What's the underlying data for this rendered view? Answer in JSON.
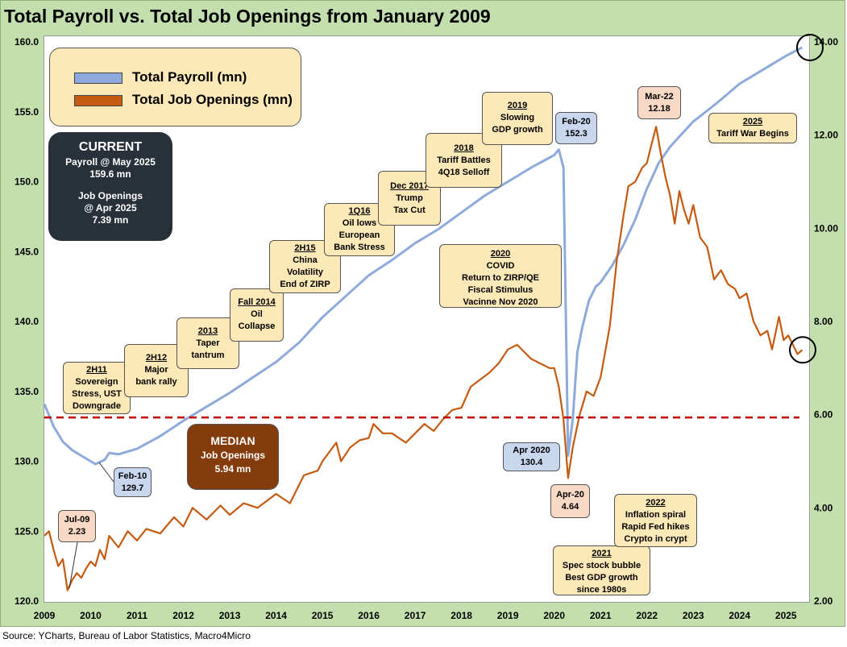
{
  "title": "Total Payroll vs. Total Job Openings from January 2009",
  "source": "Source: YCharts, Bureau of Labor Statistics, Macro4Micro",
  "colors": {
    "payroll": "#8eaadb",
    "openings": "#c55a11",
    "median_line": "#c00000",
    "frame": "#c3dfae"
  },
  "legend": {
    "payroll": "Total Payroll (mn)",
    "openings": "Total Job Openings (mn)"
  },
  "current_box": {
    "title": "CURRENT",
    "line1": "Payroll @ May 2025",
    "line2": "159.6 mn",
    "line3": "Job Openings",
    "line4": "@  Apr 2025",
    "line5": "7.39 mn"
  },
  "median_box": {
    "title": "MEDIAN",
    "line1": "Job Openings",
    "line2": "5.94 mn"
  },
  "annotations": {
    "a2h11": {
      "t": "2H11",
      "l1": "Sovereign",
      "l2": "Stress, UST",
      "l3": "Downgrade"
    },
    "a2h12": {
      "t": "2H12",
      "l1": "Major",
      "l2": "bank rally"
    },
    "a2013": {
      "t": "2013",
      "l1": "Taper",
      "l2": "tantrum"
    },
    "afall14": {
      "t": "Fall 2014",
      "l1": "Oil",
      "l2": "Collapse"
    },
    "a2h15": {
      "t": "2H15",
      "l1": "China",
      "l2": "Volatility",
      "l3": "End of ZIRP"
    },
    "a1q16": {
      "t": "1Q16",
      "l1": "Oil lows",
      "l2": "European",
      "l3": "Bank Stress"
    },
    "adec17": {
      "t": "Dec 2017",
      "l1": "Trump",
      "l2": "Tax Cut"
    },
    "a2018": {
      "t": "2018",
      "l1": "Tariff Battles",
      "l2": "4Q18 Selloff"
    },
    "a2019": {
      "t": "2019",
      "l1": "Slowing",
      "l2": "GDP growth"
    },
    "a2020": {
      "t": "2020",
      "l1": "COVID",
      "l2": "Return  to ZIRP/QE",
      "l3": "Fiscal Stimulus",
      "l4": "Vacinne Nov 2020"
    },
    "a2021": {
      "t": "2021",
      "l1": "Spec stock bubble",
      "l2": "Best GDP growth",
      "l3": "since 1980s"
    },
    "a2022": {
      "t": "2022",
      "l1": "Inflation spiral",
      "l2": "Rapid Fed hikes",
      "l3": "Crypto in crypt"
    },
    "a2025": {
      "t": "2025",
      "l1": "Tariff War Begins"
    }
  },
  "callouts": {
    "feb10": {
      "l1": "Feb-10",
      "l2": "129.7"
    },
    "jul09": {
      "l1": "Jul-09",
      "l2": "2.23"
    },
    "feb20": {
      "l1": "Feb-20",
      "l2": "152.3"
    },
    "apr2020": {
      "l1": "Apr 2020",
      "l2": "130.4"
    },
    "apr20": {
      "l1": "Apr-20",
      "l2": "4.64"
    },
    "mar22": {
      "l1": "Mar-22",
      "l2": "12.18"
    }
  },
  "chart_data": {
    "type": "line",
    "title": "Total Payroll vs. Total Job Openings from January 2009",
    "x_axis": {
      "min": 2009,
      "max": 2025.5,
      "ticks": [
        "2009",
        "2010",
        "2011",
        "2012",
        "2013",
        "2014",
        "2015",
        "2016",
        "2017",
        "2018",
        "2019",
        "2020",
        "2021",
        "2022",
        "2023",
        "2024",
        "2025"
      ]
    },
    "y_left": {
      "min": 120,
      "max": 160,
      "ticks": [
        "120.0",
        "125.0",
        "130.0",
        "135.0",
        "140.0",
        "145.0",
        "150.0",
        "155.0",
        "160.0"
      ]
    },
    "y_right": {
      "min": 2,
      "max": 14,
      "ticks": [
        "2.00",
        "4.00",
        "6.00",
        "8.00",
        "10.00",
        "12.00",
        "14.00"
      ]
    },
    "median_openings": 5.94,
    "series": [
      {
        "name": "Total Payroll (mn)",
        "axis": "left",
        "points": [
          [
            2009.0,
            134.1
          ],
          [
            2009.2,
            132.5
          ],
          [
            2009.4,
            131.4
          ],
          [
            2009.6,
            130.8
          ],
          [
            2009.8,
            130.4
          ],
          [
            2010.0,
            130.0
          ],
          [
            2010.1,
            129.8
          ],
          [
            2010.3,
            130.1
          ],
          [
            2010.4,
            130.6
          ],
          [
            2010.6,
            130.5
          ],
          [
            2010.8,
            130.7
          ],
          [
            2011.0,
            130.9
          ],
          [
            2011.5,
            131.8
          ],
          [
            2012.0,
            132.9
          ],
          [
            2012.5,
            133.9
          ],
          [
            2013.0,
            134.9
          ],
          [
            2013.5,
            136.0
          ],
          [
            2014.0,
            137.1
          ],
          [
            2014.5,
            138.5
          ],
          [
            2015.0,
            140.3
          ],
          [
            2015.5,
            141.8
          ],
          [
            2016.0,
            143.3
          ],
          [
            2016.5,
            144.4
          ],
          [
            2017.0,
            145.6
          ],
          [
            2017.5,
            146.6
          ],
          [
            2018.0,
            147.8
          ],
          [
            2018.5,
            149.0
          ],
          [
            2019.0,
            150.0
          ],
          [
            2019.5,
            151.0
          ],
          [
            2020.0,
            151.9
          ],
          [
            2020.1,
            152.3
          ],
          [
            2020.2,
            151.0
          ],
          [
            2020.3,
            130.4
          ],
          [
            2020.4,
            133.0
          ],
          [
            2020.5,
            137.8
          ],
          [
            2020.6,
            139.5
          ],
          [
            2020.75,
            141.5
          ],
          [
            2020.9,
            142.5
          ],
          [
            2021.0,
            142.8
          ],
          [
            2021.25,
            144.0
          ],
          [
            2021.5,
            145.5
          ],
          [
            2021.75,
            147.3
          ],
          [
            2022.0,
            149.5
          ],
          [
            2022.25,
            151.3
          ],
          [
            2022.5,
            152.5
          ],
          [
            2022.75,
            153.4
          ],
          [
            2023.0,
            154.3
          ],
          [
            2023.5,
            155.6
          ],
          [
            2024.0,
            157.0
          ],
          [
            2024.5,
            158.0
          ],
          [
            2025.0,
            159.0
          ],
          [
            2025.35,
            159.6
          ]
        ]
      },
      {
        "name": "Total Job Openings (mn)",
        "axis": "right",
        "points": [
          [
            2009.0,
            3.4
          ],
          [
            2009.1,
            3.5
          ],
          [
            2009.2,
            3.1
          ],
          [
            2009.3,
            2.75
          ],
          [
            2009.4,
            2.9
          ],
          [
            2009.5,
            2.23
          ],
          [
            2009.6,
            2.45
          ],
          [
            2009.7,
            2.6
          ],
          [
            2009.8,
            2.5
          ],
          [
            2009.9,
            2.7
          ],
          [
            2010.0,
            2.85
          ],
          [
            2010.1,
            2.75
          ],
          [
            2010.2,
            3.1
          ],
          [
            2010.3,
            2.9
          ],
          [
            2010.4,
            3.4
          ],
          [
            2010.6,
            3.15
          ],
          [
            2010.8,
            3.5
          ],
          [
            2011.0,
            3.3
          ],
          [
            2011.2,
            3.55
          ],
          [
            2011.5,
            3.45
          ],
          [
            2011.8,
            3.8
          ],
          [
            2012.0,
            3.6
          ],
          [
            2012.2,
            4.0
          ],
          [
            2012.5,
            3.75
          ],
          [
            2012.8,
            4.05
          ],
          [
            2013.0,
            3.85
          ],
          [
            2013.3,
            4.1
          ],
          [
            2013.6,
            4.0
          ],
          [
            2014.0,
            4.3
          ],
          [
            2014.3,
            4.1
          ],
          [
            2014.6,
            4.7
          ],
          [
            2014.9,
            4.8
          ],
          [
            2015.0,
            5.0
          ],
          [
            2015.3,
            5.4
          ],
          [
            2015.4,
            5.0
          ],
          [
            2015.6,
            5.3
          ],
          [
            2015.8,
            5.45
          ],
          [
            2016.0,
            5.5
          ],
          [
            2016.1,
            5.8
          ],
          [
            2016.3,
            5.6
          ],
          [
            2016.5,
            5.6
          ],
          [
            2016.8,
            5.4
          ],
          [
            2017.0,
            5.6
          ],
          [
            2017.2,
            5.8
          ],
          [
            2017.4,
            5.65
          ],
          [
            2017.6,
            5.9
          ],
          [
            2017.8,
            6.1
          ],
          [
            2018.0,
            6.15
          ],
          [
            2018.2,
            6.6
          ],
          [
            2018.4,
            6.75
          ],
          [
            2018.6,
            6.9
          ],
          [
            2018.8,
            7.1
          ],
          [
            2019.0,
            7.4
          ],
          [
            2019.2,
            7.5
          ],
          [
            2019.35,
            7.35
          ],
          [
            2019.5,
            7.2
          ],
          [
            2019.7,
            7.1
          ],
          [
            2019.9,
            7.0
          ],
          [
            2020.0,
            7.0
          ],
          [
            2020.1,
            6.6
          ],
          [
            2020.2,
            5.9
          ],
          [
            2020.3,
            4.64
          ],
          [
            2020.4,
            5.3
          ],
          [
            2020.55,
            6.0
          ],
          [
            2020.7,
            6.5
          ],
          [
            2020.85,
            6.4
          ],
          [
            2021.0,
            6.8
          ],
          [
            2021.2,
            7.9
          ],
          [
            2021.35,
            9.3
          ],
          [
            2021.5,
            10.3
          ],
          [
            2021.6,
            10.9
          ],
          [
            2021.75,
            11.0
          ],
          [
            2021.9,
            11.3
          ],
          [
            2022.0,
            11.4
          ],
          [
            2022.1,
            11.8
          ],
          [
            2022.2,
            12.18
          ],
          [
            2022.3,
            11.6
          ],
          [
            2022.4,
            11.1
          ],
          [
            2022.5,
            10.7
          ],
          [
            2022.6,
            10.1
          ],
          [
            2022.7,
            10.8
          ],
          [
            2022.8,
            10.4
          ],
          [
            2022.9,
            10.1
          ],
          [
            2023.0,
            10.5
          ],
          [
            2023.15,
            9.8
          ],
          [
            2023.3,
            9.6
          ],
          [
            2023.45,
            8.9
          ],
          [
            2023.6,
            9.1
          ],
          [
            2023.75,
            8.8
          ],
          [
            2023.9,
            8.7
          ],
          [
            2024.0,
            8.5
          ],
          [
            2024.15,
            8.6
          ],
          [
            2024.3,
            8.0
          ],
          [
            2024.45,
            7.7
          ],
          [
            2024.6,
            7.8
          ],
          [
            2024.7,
            7.4
          ],
          [
            2024.85,
            8.1
          ],
          [
            2024.95,
            7.6
          ],
          [
            2025.05,
            7.7
          ],
          [
            2025.15,
            7.5
          ],
          [
            2025.25,
            7.3
          ],
          [
            2025.35,
            7.39
          ]
        ]
      }
    ]
  }
}
